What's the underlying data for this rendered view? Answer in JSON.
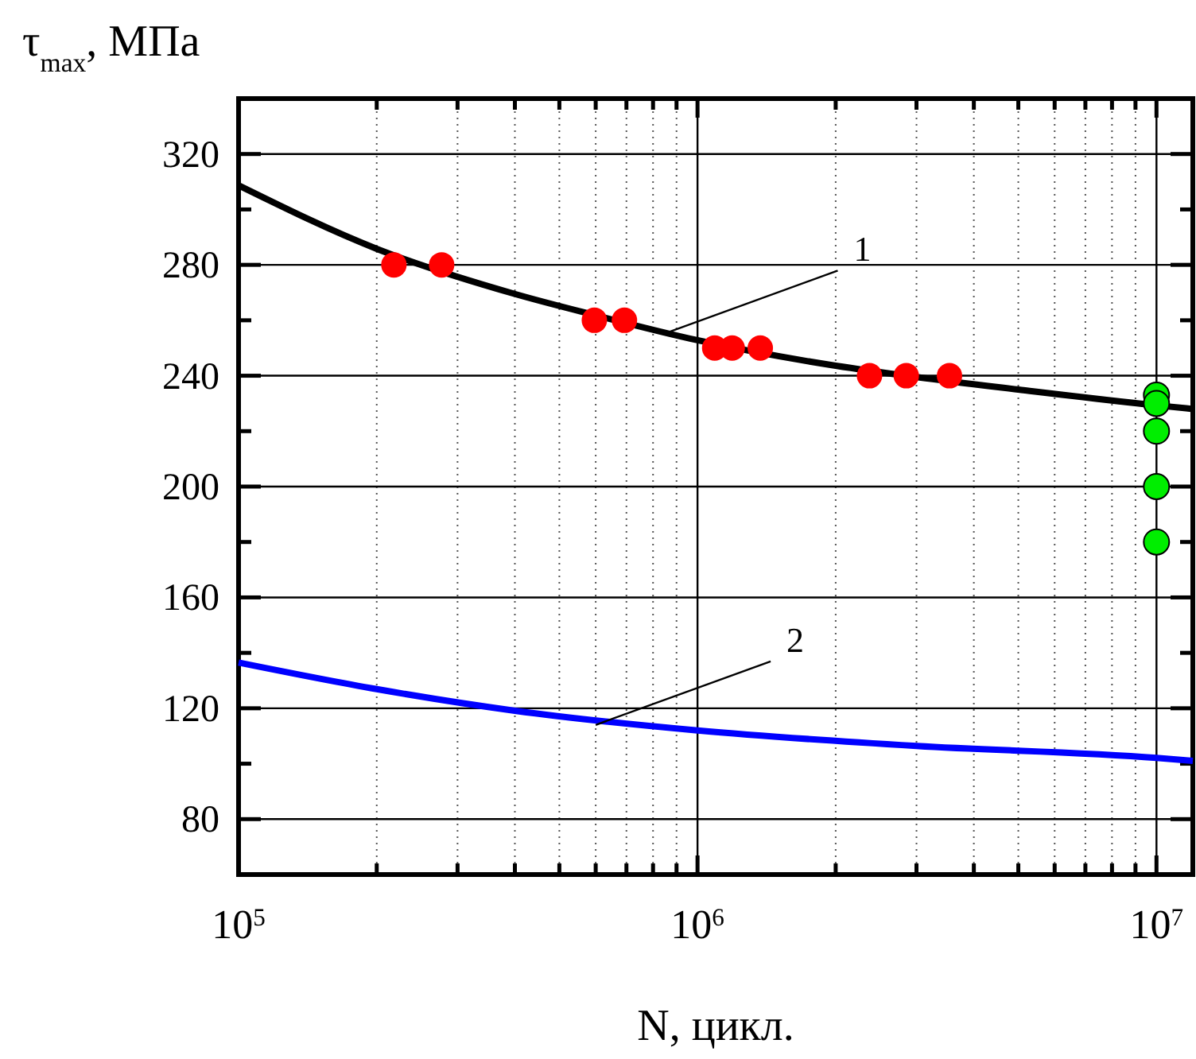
{
  "chart_data": {
    "type": "scatter",
    "xlabel": "N, цикл.",
    "ylabel": "τ$_{max}$, МПа",
    "log": "x",
    "grid": true,
    "marker": "circle",
    "xlim": [
      100000,
      12000000
    ],
    "ylim": [
      60,
      340
    ],
    "xticks": [
      {
        "value": 100000,
        "label": "10$^{5}$"
      },
      {
        "value": 200000,
        "label": null
      },
      {
        "value": 300000,
        "label": null
      },
      {
        "value": 400000,
        "label": null
      },
      {
        "value": 500000,
        "label": null
      },
      {
        "value": 600000,
        "label": null
      },
      {
        "value": 700000,
        "label": null
      },
      {
        "value": 800000,
        "label": null
      },
      {
        "value": 900000,
        "label": null
      },
      {
        "value": 1000000,
        "label": "10$^{6}$"
      },
      {
        "value": 2000000,
        "label": null
      },
      {
        "value": 3000000,
        "label": null
      },
      {
        "value": 4000000,
        "label": null
      },
      {
        "value": 5000000,
        "label": null
      },
      {
        "value": 6000000,
        "label": null
      },
      {
        "value": 7000000,
        "label": null
      },
      {
        "value": 8000000,
        "label": null
      },
      {
        "value": 9000000,
        "label": null
      },
      {
        "value": 10000000,
        "label": "10$^{7}$"
      }
    ],
    "yticks": [
      80,
      {
        "value": 100,
        "label": null
      },
      120,
      {
        "value": 140,
        "label": null
      },
      160,
      {
        "value": 180,
        "label": null
      },
      200,
      {
        "value": 220,
        "label": null
      },
      240,
      {
        "value": 260,
        "label": null
      },
      280,
      {
        "value": 300,
        "label": null
      },
      320
    ],
    "series": [
      {
        "type": "line",
        "color": "#000000",
        "marker": "none",
        "x": [
          100000,
          200000,
          400000,
          600000,
          1000000,
          2000000,
          3000000,
          5000000,
          10000000,
          12000000
        ],
        "values": [
          308.7,
          285.8,
          269.5,
          261.8,
          252.8,
          243.6,
          239.5,
          235,
          229.3,
          228
        ]
      },
      {
        "type": "line",
        "color": "#0000ff",
        "marker": "none",
        "x": [
          100000,
          200000,
          400000,
          1000000,
          3000000,
          10000000,
          12000000
        ],
        "values": [
          136.5,
          126.9,
          119.1,
          112,
          106.4,
          102.1,
          101
        ]
      },
      {
        "color": "#ff0000",
        "x": [
          218000,
          277000,
          596000,
          693000,
          1090000,
          1190000,
          1370000,
          2370000,
          2850000,
          3540000
        ],
        "values": [
          280,
          280,
          260,
          260,
          250,
          250,
          250,
          240,
          240,
          240
        ]
      },
      {
        "color": "#00ee00",
        "x": [
          10000000,
          10000000,
          10000000,
          10000000,
          10000000
        ],
        "values": [
          233,
          230,
          220,
          200,
          180
        ]
      }
    ],
    "annotations": [
      {
        "text": "1",
        "x": 840000,
        "y": 255
      },
      {
        "text": "2",
        "x": 600000,
        "y": 114
      }
    ]
  }
}
